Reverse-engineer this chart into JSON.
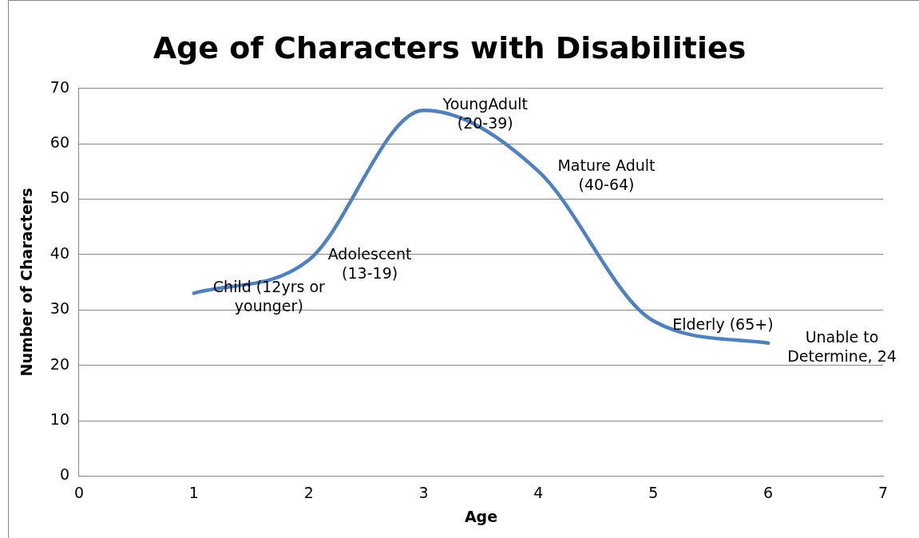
{
  "chart_data": {
    "type": "line",
    "title": "Age of Characters with Disabilities",
    "xlabel": "Age",
    "ylabel": "Number of Characters",
    "x": [
      1,
      2,
      3,
      4,
      5,
      6
    ],
    "series": [
      {
        "color": "#4f81bd",
        "values": [
          33,
          39,
          66,
          55,
          28,
          24
        ]
      }
    ],
    "xlim": [
      0,
      7
    ],
    "xticks": [
      0,
      1,
      2,
      3,
      4,
      5,
      6,
      7
    ],
    "ylim": [
      0,
      70
    ],
    "yticks": [
      0,
      10,
      20,
      30,
      40,
      50,
      60,
      70
    ],
    "grid": "y",
    "legend": false,
    "marker": "none",
    "line_style": "solid",
    "annotations": [
      {
        "text": "Child (12yrs or younger)",
        "x": 1,
        "y": 33
      },
      {
        "text": "Adolescent (13-19)",
        "x": 2,
        "y": 39
      },
      {
        "text": "YoungAdult (20-39)",
        "x": 3,
        "y": 66
      },
      {
        "text": "Mature Adult (40-64)",
        "x": 4,
        "y": 55
      },
      {
        "text": "Elderly (65+)",
        "x": 5,
        "y": 28
      },
      {
        "text": "Unable to Determine, 24",
        "x": 6,
        "y": 24
      }
    ]
  }
}
